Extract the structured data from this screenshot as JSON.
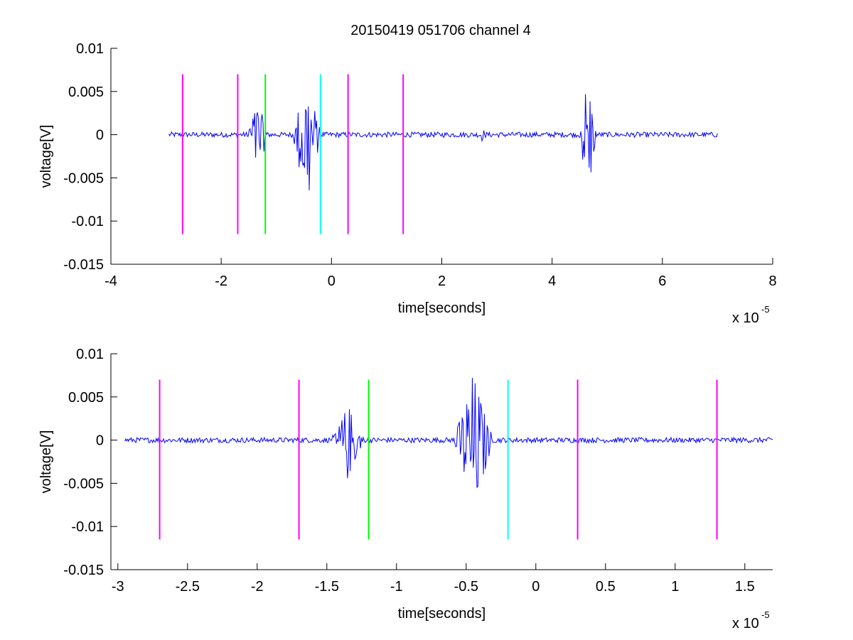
{
  "figure_title": "20150419 051706 channel 4",
  "colors": {
    "signal": "#0000ff",
    "marker_magenta": "#ff00ff",
    "marker_green": "#00ff00",
    "marker_cyan": "#00ffff",
    "axes": "#000000",
    "background": "#ffffff"
  },
  "chart_data": [
    {
      "type": "line",
      "title": "20150419 051706 channel 4",
      "xlabel": "time[seconds]",
      "ylabel": "voltage[V]",
      "x_scale_label": "x 10",
      "x_scale_exponent": "-5",
      "xlim": [
        -4,
        8
      ],
      "ylim": [
        -0.015,
        0.01
      ],
      "x_unit_multiplier": 1e-05,
      "xticks": [
        -4,
        -2,
        0,
        2,
        4,
        6,
        8
      ],
      "xtick_labels": [
        "-4",
        "-2",
        "0",
        "2",
        "4",
        "6",
        "8"
      ],
      "yticks": [
        0.01,
        0.005,
        0,
        -0.005,
        -0.01,
        -0.015
      ],
      "ytick_labels": [
        "0.01",
        "0.005",
        "0",
        "-0.005",
        "-0.01",
        "-0.015"
      ],
      "grid": false,
      "signal": {
        "x_range": [
          -2.95,
          7.0
        ],
        "baseline_noise": 0.0003,
        "bursts": [
          {
            "x": -1.35,
            "width": 0.2,
            "amplitude": 0.0045
          },
          {
            "x": -0.45,
            "width": 0.25,
            "amplitude": 0.009
          },
          {
            "x": 2.75,
            "width": 0.05,
            "amplitude": 0.0008
          },
          {
            "x": 4.65,
            "width": 0.15,
            "amplitude": 0.009
          }
        ]
      },
      "markers": [
        {
          "x": -2.7,
          "color": "magenta",
          "y_range": [
            -0.0115,
            0.007
          ]
        },
        {
          "x": -1.7,
          "color": "magenta",
          "y_range": [
            -0.0115,
            0.007
          ]
        },
        {
          "x": -1.2,
          "color": "green",
          "y_range": [
            -0.0115,
            0.007
          ]
        },
        {
          "x": -0.2,
          "color": "cyan",
          "y_range": [
            -0.0115,
            0.007
          ]
        },
        {
          "x": 0.3,
          "color": "magenta",
          "y_range": [
            -0.0115,
            0.007
          ]
        },
        {
          "x": 1.3,
          "color": "magenta",
          "y_range": [
            -0.0115,
            0.007
          ]
        }
      ]
    },
    {
      "type": "line",
      "title": "",
      "xlabel": "time[seconds]",
      "ylabel": "voltage[V]",
      "x_scale_label": "x 10",
      "x_scale_exponent": "-5",
      "xlim": [
        -3.05,
        1.7
      ],
      "ylim": [
        -0.015,
        0.01
      ],
      "x_unit_multiplier": 1e-05,
      "xticks": [
        -3,
        -2.5,
        -2,
        -1.5,
        -1,
        -0.5,
        0,
        0.5,
        1,
        1.5
      ],
      "xtick_labels": [
        "-3",
        "-2.5",
        "-2",
        "-1.5",
        "-1",
        "-0.5",
        "0",
        "0.5",
        "1",
        "1.5"
      ],
      "yticks": [
        0.01,
        0.005,
        0,
        -0.005,
        -0.01,
        -0.015
      ],
      "ytick_labels": [
        "0.01",
        "0.005",
        "0",
        "-0.005",
        "-0.01",
        "-0.015"
      ],
      "grid": false,
      "signal": {
        "x_range": [
          -2.95,
          1.7
        ],
        "baseline_noise": 0.0003,
        "bursts": [
          {
            "x": -1.35,
            "width": 0.12,
            "amplitude": 0.0045
          },
          {
            "x": -0.45,
            "width": 0.14,
            "amplitude": 0.009
          }
        ]
      },
      "markers": [
        {
          "x": -2.7,
          "color": "magenta",
          "y_range": [
            -0.0115,
            0.007
          ]
        },
        {
          "x": -1.7,
          "color": "magenta",
          "y_range": [
            -0.0115,
            0.007
          ]
        },
        {
          "x": -1.2,
          "color": "green",
          "y_range": [
            -0.0115,
            0.007
          ]
        },
        {
          "x": -0.2,
          "color": "cyan",
          "y_range": [
            -0.0115,
            0.007
          ]
        },
        {
          "x": 0.3,
          "color": "magenta",
          "y_range": [
            -0.0115,
            0.007
          ]
        },
        {
          "x": 1.3,
          "color": "magenta",
          "y_range": [
            -0.0115,
            0.007
          ]
        }
      ]
    }
  ]
}
